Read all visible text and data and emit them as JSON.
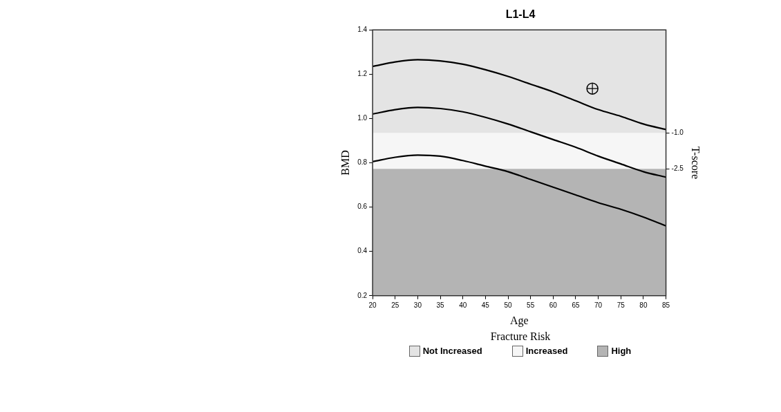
{
  "chart_data": {
    "type": "line",
    "title": "L1-L4",
    "xlabel": "Age",
    "ylabel": "BMD",
    "y2label": "T-score",
    "legend_title": "Fracture Risk",
    "legend": "bottom",
    "grid": false,
    "x": [
      20,
      25,
      30,
      35,
      40,
      45,
      50,
      55,
      60,
      65,
      70,
      75,
      80,
      85
    ],
    "series": [
      {
        "color": "#000000",
        "values": [
          1.235,
          1.255,
          1.265,
          1.26,
          1.245,
          1.22,
          1.19,
          1.155,
          1.12,
          1.08,
          1.04,
          1.01,
          0.975,
          0.95
        ]
      },
      {
        "color": "#000000",
        "values": [
          1.02,
          1.04,
          1.05,
          1.045,
          1.03,
          1.005,
          0.975,
          0.94,
          0.905,
          0.87,
          0.83,
          0.795,
          0.76,
          0.735
        ]
      },
      {
        "color": "#000000",
        "values": [
          0.805,
          0.825,
          0.835,
          0.83,
          0.81,
          0.785,
          0.76,
          0.725,
          0.69,
          0.655,
          0.62,
          0.59,
          0.555,
          0.515
        ]
      },
      {
        "type": "scatter",
        "marker": "circle",
        "color": "#000000",
        "x": [
          68.7
        ],
        "values": [
          1.135
        ]
      }
    ],
    "bands": [
      {
        "axis": "y",
        "from": 0.934,
        "to": 1.4,
        "label": "Not Increased",
        "color": "#e4e4e4"
      },
      {
        "axis": "y",
        "from": 0.773,
        "to": 0.934,
        "label": "Increased",
        "color": "#f6f6f6"
      },
      {
        "axis": "y",
        "from": 0.2,
        "to": 0.773,
        "label": "High",
        "color": "#b4b4b4"
      }
    ],
    "xlim": [
      20,
      85
    ],
    "xticks": [
      20,
      25,
      30,
      35,
      40,
      45,
      50,
      55,
      60,
      65,
      70,
      75,
      80,
      85
    ],
    "ylim": [
      0.2,
      1.4
    ],
    "yticks": [
      0.2,
      0.4,
      0.6,
      0.8,
      {
        "value": 1,
        "label": "1.0"
      },
      1.2,
      1.4
    ],
    "y2lim": [
      -7.84,
      3.35
    ],
    "y2ticks": [
      {
        "value": -1,
        "label": "-1.0"
      },
      -2.5
    ]
  }
}
